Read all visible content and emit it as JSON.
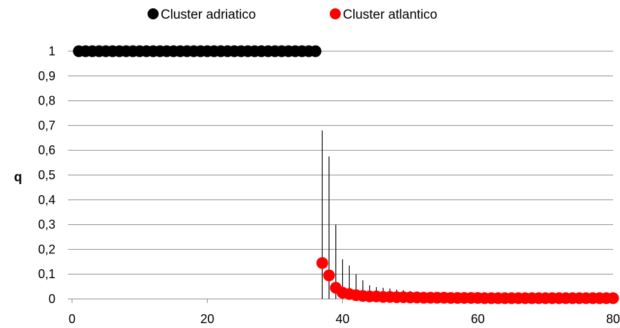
{
  "chart_data": {
    "type": "scatter",
    "title": "",
    "xlabel": "",
    "ylabel": "q",
    "xlim": [
      0,
      80
    ],
    "ylim": [
      0,
      1
    ],
    "x_ticks": [
      0,
      20,
      40,
      60,
      80
    ],
    "y_ticks": [
      0,
      0.1,
      0.2,
      0.3,
      0.4,
      0.5,
      0.6,
      0.7,
      0.8,
      0.9,
      1
    ],
    "y_tick_labels": [
      "0",
      "0,1",
      "0,2",
      "0,3",
      "0,4",
      "0,5",
      "0,6",
      "0,7",
      "0,8",
      "0,9",
      "1"
    ],
    "grid": "horizontal",
    "legend_position": "top",
    "series": [
      {
        "name": "Cluster adriatico",
        "color": "#000000",
        "x": [
          1,
          2,
          3,
          4,
          5,
          6,
          7,
          8,
          9,
          10,
          11,
          12,
          13,
          14,
          15,
          16,
          17,
          18,
          19,
          20,
          21,
          22,
          23,
          24,
          25,
          26,
          27,
          28,
          29,
          30,
          31,
          32,
          33,
          34,
          35,
          36
        ],
        "y": [
          1,
          1,
          1,
          1,
          1,
          1,
          1,
          1,
          1,
          1,
          1,
          1,
          1,
          1,
          1,
          1,
          1,
          1,
          1,
          1,
          1,
          1,
          1,
          1,
          1,
          1,
          1,
          1,
          1,
          1,
          1,
          1,
          1,
          1,
          1,
          1
        ]
      },
      {
        "name": "Cluster atlantico",
        "color": "#ff0000",
        "x": [
          37,
          38,
          39,
          40,
          41,
          42,
          43,
          44,
          45,
          46,
          47,
          48,
          49,
          50,
          51,
          52,
          53,
          54,
          55,
          56,
          57,
          58,
          59,
          60,
          61,
          62,
          63,
          64,
          65,
          66,
          67,
          68,
          69,
          70,
          71,
          72,
          73,
          74,
          75,
          76,
          77,
          78,
          79,
          80
        ],
        "y": [
          0.145,
          0.095,
          0.045,
          0.025,
          0.02,
          0.015,
          0.012,
          0.01,
          0.01,
          0.008,
          0.008,
          0.007,
          0.007,
          0.006,
          0.006,
          0.005,
          0.005,
          0.005,
          0.005,
          0.004,
          0.004,
          0.004,
          0.004,
          0.004,
          0.003,
          0.003,
          0.003,
          0.003,
          0.003,
          0.003,
          0.003,
          0.003,
          0.003,
          0.003,
          0.003,
          0.003,
          0.003,
          0.003,
          0.003,
          0.003,
          0.003,
          0.003,
          0.003,
          0.003
        ]
      }
    ],
    "error_bars": {
      "color": "#000000",
      "x": [
        37,
        38,
        39,
        40,
        41,
        42,
        43,
        44,
        45,
        46,
        47,
        48,
        49,
        50,
        51,
        52,
        53
      ],
      "upper": [
        0.68,
        0.575,
        0.3,
        0.16,
        0.135,
        0.1,
        0.075,
        0.055,
        0.048,
        0.045,
        0.042,
        0.038,
        0.035,
        0.032,
        0.03,
        0.02,
        0.015
      ]
    }
  }
}
